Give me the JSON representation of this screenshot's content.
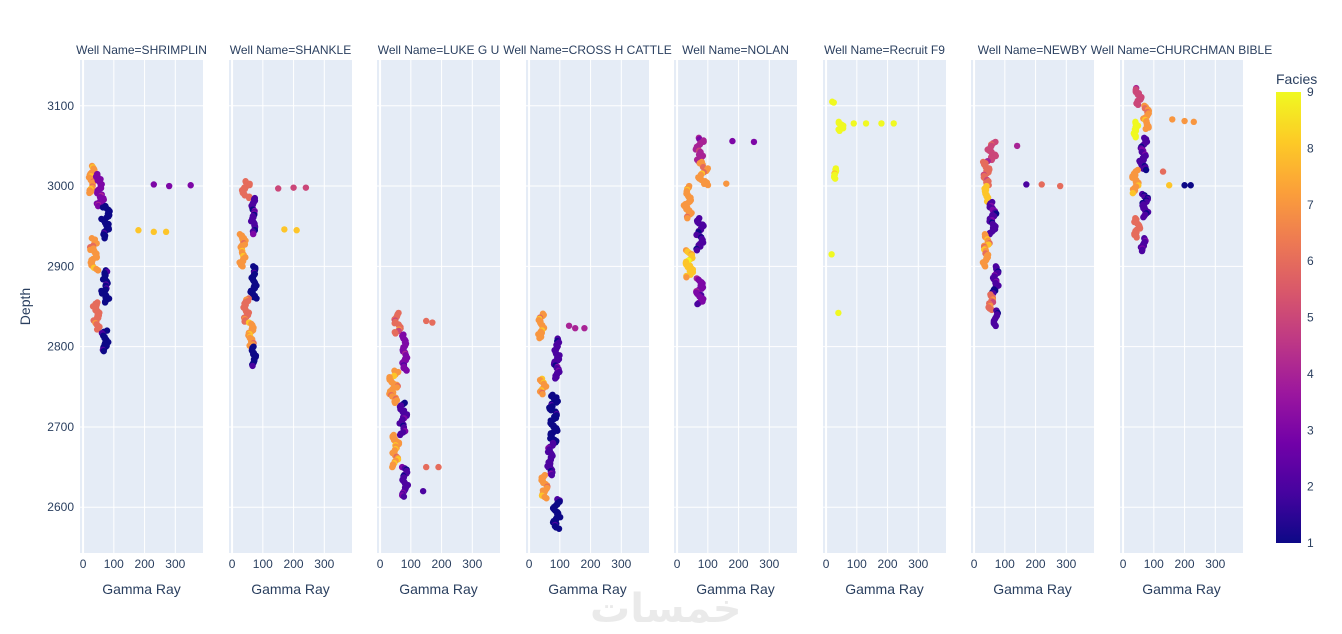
{
  "chart_data": {
    "type": "scatter",
    "xlabel": "Gamma Ray",
    "ylabel": "Depth",
    "xlim": [
      -10,
      390
    ],
    "ylim": [
      2543,
      3157
    ],
    "x_ticks": [
      0,
      100,
      200,
      300
    ],
    "y_ticks": [
      2600,
      2700,
      2800,
      2900,
      3000,
      3100
    ],
    "grid": true,
    "colorbar": {
      "title": "Facies",
      "min": 1,
      "max": 9,
      "ticks": [
        1,
        2,
        3,
        4,
        5,
        6,
        7,
        8,
        9
      ],
      "colorscale": [
        "#0d0887",
        "#46039f",
        "#7201a8",
        "#9c179e",
        "#bd3786",
        "#d8576b",
        "#ed7953",
        "#fb9f3a",
        "#fdca26",
        "#f0f921"
      ]
    },
    "facets": [
      {
        "title": "Well Name=SHRIMPLIN",
        "depth_range": [
          2793,
          3025
        ],
        "segments": [
          [
            3025,
            2990,
            28,
            9,
            7
          ],
          [
            3015,
            2975,
            55,
            15,
            3
          ],
          [
            2975,
            2935,
            75,
            15,
            1
          ],
          [
            2935,
            2895,
            35,
            14,
            7
          ],
          [
            2895,
            2855,
            72,
            14,
            1
          ],
          [
            2855,
            2820,
            45,
            12,
            6
          ],
          [
            2820,
            2793,
            70,
            12,
            1
          ]
        ],
        "outliers": [
          [
            180,
            2945,
            8
          ],
          [
            230,
            2943,
            8
          ],
          [
            270,
            2943,
            8
          ],
          [
            230,
            3002,
            3
          ],
          [
            280,
            3000,
            3
          ],
          [
            350,
            3001,
            3
          ]
        ]
      },
      {
        "title": "Well Name=SHANKLE",
        "depth_range": [
          2775,
          3006
        ],
        "segments": [
          [
            3006,
            2985,
            45,
            13,
            6
          ],
          [
            2985,
            2940,
            70,
            8,
            2
          ],
          [
            2940,
            2900,
            35,
            10,
            7
          ],
          [
            2900,
            2860,
            70,
            10,
            1
          ],
          [
            2860,
            2830,
            45,
            10,
            6
          ],
          [
            2830,
            2800,
            60,
            10,
            7
          ],
          [
            2800,
            2775,
            70,
            8,
            1
          ]
        ],
        "outliers": [
          [
            170,
            2946,
            8
          ],
          [
            210,
            2945,
            8
          ],
          [
            150,
            2997,
            5
          ],
          [
            200,
            2998,
            5
          ],
          [
            240,
            2998,
            5
          ]
        ]
      },
      {
        "title": "Well Name=LUKE G U",
        "depth_range": [
          2612,
          2842
        ],
        "segments": [
          [
            2842,
            2815,
            55,
            12,
            6
          ],
          [
            2815,
            2770,
            80,
            8,
            3
          ],
          [
            2770,
            2730,
            45,
            15,
            7
          ],
          [
            2730,
            2690,
            75,
            12,
            2
          ],
          [
            2690,
            2650,
            50,
            12,
            7
          ],
          [
            2650,
            2612,
            80,
            12,
            2
          ]
        ],
        "outliers": [
          [
            150,
            2832,
            6
          ],
          [
            170,
            2830,
            6
          ],
          [
            150,
            2650,
            6
          ],
          [
            190,
            2650,
            6
          ],
          [
            140,
            2620,
            2
          ]
        ]
      },
      {
        "title": "Well Name=CROSS H CATTLE",
        "depth_range": [
          2572,
          2841
        ],
        "segments": [
          [
            2841,
            2810,
            40,
            10,
            7
          ],
          [
            2810,
            2760,
            90,
            10,
            2
          ],
          [
            2760,
            2740,
            45,
            10,
            7
          ],
          [
            2740,
            2680,
            80,
            14,
            1
          ],
          [
            2680,
            2640,
            70,
            10,
            2
          ],
          [
            2640,
            2610,
            50,
            10,
            7
          ],
          [
            2610,
            2572,
            90,
            12,
            1
          ]
        ],
        "outliers": [
          [
            150,
            2823,
            4
          ],
          [
            180,
            2823,
            4
          ],
          [
            130,
            2826,
            4
          ]
        ]
      },
      {
        "title": "Well Name=NOLAN",
        "depth_range": [
          2852,
          3060
        ],
        "segments": [
          [
            3060,
            3030,
            70,
            18,
            4
          ],
          [
            3030,
            3000,
            85,
            15,
            7
          ],
          [
            3000,
            2960,
            35,
            12,
            7
          ],
          [
            2960,
            2920,
            75,
            12,
            2
          ],
          [
            2920,
            2885,
            40,
            12,
            8
          ],
          [
            2885,
            2852,
            75,
            12,
            3
          ]
        ],
        "outliers": [
          [
            180,
            3056,
            3
          ],
          [
            250,
            3055,
            3
          ],
          [
            160,
            3003,
            7
          ]
        ]
      },
      {
        "title": "Well Name=Recruit F9",
        "depth_range": [
          2840,
          3105
        ],
        "segments": [
          [
            3080,
            3068,
            45,
            12,
            9
          ],
          [
            3022,
            3008,
            30,
            5,
            9
          ]
        ],
        "outliers": [
          [
            20,
            3105,
            9
          ],
          [
            25,
            3104,
            9
          ],
          [
            90,
            3078,
            9
          ],
          [
            130,
            3078,
            9
          ],
          [
            180,
            3078,
            9
          ],
          [
            220,
            3078,
            9
          ],
          [
            18,
            2915,
            9
          ],
          [
            40,
            2842,
            9
          ]
        ]
      },
      {
        "title": "Well Name=NEWBY",
        "depth_range": [
          2825,
          3055
        ],
        "segments": [
          [
            3055,
            3030,
            55,
            15,
            5
          ],
          [
            3030,
            3000,
            40,
            10,
            6
          ],
          [
            3000,
            2980,
            40,
            10,
            8
          ],
          [
            2980,
            2940,
            60,
            12,
            2
          ],
          [
            2940,
            2900,
            40,
            12,
            7
          ],
          [
            2900,
            2865,
            70,
            10,
            2
          ],
          [
            2865,
            2845,
            55,
            12,
            6
          ],
          [
            2845,
            2825,
            70,
            8,
            2
          ]
        ],
        "outliers": [
          [
            140,
            3050,
            4
          ],
          [
            220,
            3002,
            6
          ],
          [
            280,
            3000,
            6
          ],
          [
            170,
            3002,
            2
          ]
        ]
      },
      {
        "title": "Well Name=CHURCHMAN BIBLE",
        "depth_range": [
          2918,
          3122
        ],
        "segments": [
          [
            3122,
            3100,
            50,
            10,
            5
          ],
          [
            3100,
            3070,
            75,
            10,
            7
          ],
          [
            3080,
            3060,
            40,
            8,
            9
          ],
          [
            3060,
            3020,
            65,
            12,
            2
          ],
          [
            3020,
            2990,
            40,
            10,
            7
          ],
          [
            2990,
            2960,
            70,
            12,
            2
          ],
          [
            2960,
            2935,
            45,
            10,
            6
          ],
          [
            2935,
            2918,
            65,
            8,
            2
          ]
        ],
        "outliers": [
          [
            160,
            3083,
            7
          ],
          [
            200,
            3081,
            7
          ],
          [
            230,
            3080,
            7
          ],
          [
            150,
            3001,
            8
          ],
          [
            200,
            3001,
            1
          ],
          [
            220,
            3001,
            1
          ],
          [
            130,
            3018,
            6
          ]
        ]
      }
    ]
  }
}
